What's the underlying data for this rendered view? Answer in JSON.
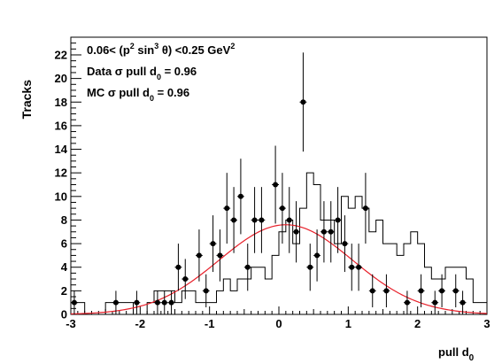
{
  "chart_data": {
    "type": "scatter",
    "xlabel": "pull d",
    "xlabel_sub": "0",
    "ylabel": "Tracks",
    "xlim": [
      -3,
      3
    ],
    "ylim": [
      0,
      23.5
    ],
    "x_ticks": [
      -3,
      -2,
      -1,
      0,
      1,
      2,
      3
    ],
    "y_ticks": [
      0,
      2,
      4,
      6,
      8,
      10,
      12,
      14,
      16,
      18,
      20,
      22
    ],
    "annotations": {
      "line1_pre": "0.06< (p",
      "line1_sup1": "2",
      "line1_mid": " sin",
      "line1_sup2": "3",
      "line1_post": " θ) <0.25 GeV",
      "line1_sup3": "2",
      "line2_pre": "Data σ pull d",
      "line2_sub": "0",
      "line2_post": " = 0.96",
      "line3_pre": "MC σ pull d",
      "line3_sub": "0",
      "line3_post": " = 0.96"
    },
    "bin_edges_start": -3.0,
    "bin_width": 0.1,
    "mc_histogram": [
      1,
      1,
      0,
      0,
      0,
      1,
      1,
      1,
      1,
      0,
      0,
      1,
      2,
      2,
      2,
      1,
      2,
      2,
      1,
      1,
      1,
      2,
      3,
      2,
      3,
      3,
      4,
      4,
      3,
      5,
      7,
      8,
      6,
      9,
      12,
      11,
      8,
      8,
      6,
      10,
      9,
      10,
      9,
      7,
      8,
      6,
      6,
      5,
      6,
      7,
      6,
      4,
      3,
      3,
      4,
      4,
      4,
      3,
      1,
      1
    ],
    "data_points": [
      {
        "x": -2.95,
        "y": 1,
        "err": 1
      },
      {
        "x": -2.35,
        "y": 1,
        "err": 1
      },
      {
        "x": -2.05,
        "y": 1,
        "err": 1
      },
      {
        "x": -1.75,
        "y": 1,
        "err": 1
      },
      {
        "x": -1.65,
        "y": 1,
        "err": 1
      },
      {
        "x": -1.55,
        "y": 1,
        "err": 1
      },
      {
        "x": -1.45,
        "y": 4,
        "err": 2
      },
      {
        "x": -1.35,
        "y": 3,
        "err": 1.7
      },
      {
        "x": -1.15,
        "y": 5,
        "err": 2.2
      },
      {
        "x": -1.05,
        "y": 2,
        "err": 1.4
      },
      {
        "x": -0.95,
        "y": 6,
        "err": 2.4
      },
      {
        "x": -0.85,
        "y": 5,
        "err": 2.2
      },
      {
        "x": -0.75,
        "y": 9,
        "err": 3
      },
      {
        "x": -0.65,
        "y": 8,
        "err": 2.8
      },
      {
        "x": -0.55,
        "y": 10,
        "err": 3.2
      },
      {
        "x": -0.45,
        "y": 4,
        "err": 2
      },
      {
        "x": -0.35,
        "y": 8,
        "err": 2.8
      },
      {
        "x": -0.25,
        "y": 8,
        "err": 2.8
      },
      {
        "x": -0.05,
        "y": 11,
        "err": 3.3
      },
      {
        "x": 0.05,
        "y": 9,
        "err": 3
      },
      {
        "x": 0.15,
        "y": 8,
        "err": 2.8
      },
      {
        "x": 0.25,
        "y": 7,
        "err": 2.6
      },
      {
        "x": 0.35,
        "y": 18,
        "err": 4.2
      },
      {
        "x": 0.45,
        "y": 4,
        "err": 2
      },
      {
        "x": 0.55,
        "y": 5,
        "err": 2.2
      },
      {
        "x": 0.65,
        "y": 7,
        "err": 2.6
      },
      {
        "x": 0.75,
        "y": 7,
        "err": 2.6
      },
      {
        "x": 0.85,
        "y": 8,
        "err": 2.8
      },
      {
        "x": 0.95,
        "y": 6,
        "err": 2.4
      },
      {
        "x": 1.05,
        "y": 4,
        "err": 2
      },
      {
        "x": 1.15,
        "y": 4,
        "err": 2
      },
      {
        "x": 1.25,
        "y": 9,
        "err": 3
      },
      {
        "x": 1.35,
        "y": 2,
        "err": 1.4
      },
      {
        "x": 1.55,
        "y": 2,
        "err": 1.4
      },
      {
        "x": 1.85,
        "y": 1,
        "err": 1
      },
      {
        "x": 2.05,
        "y": 2,
        "err": 1.4
      },
      {
        "x": 2.25,
        "y": 1,
        "err": 1
      },
      {
        "x": 2.35,
        "y": 2,
        "err": 1.4
      },
      {
        "x": 2.55,
        "y": 2,
        "err": 1.4
      },
      {
        "x": 2.65,
        "y": 1,
        "err": 1
      }
    ],
    "fit": {
      "type": "gaussian",
      "amplitude": 7.6,
      "mean": 0.1,
      "sigma": 0.96
    },
    "colors": {
      "fit": "#e8202a",
      "histogram": "#000000",
      "points": "#000000"
    }
  }
}
